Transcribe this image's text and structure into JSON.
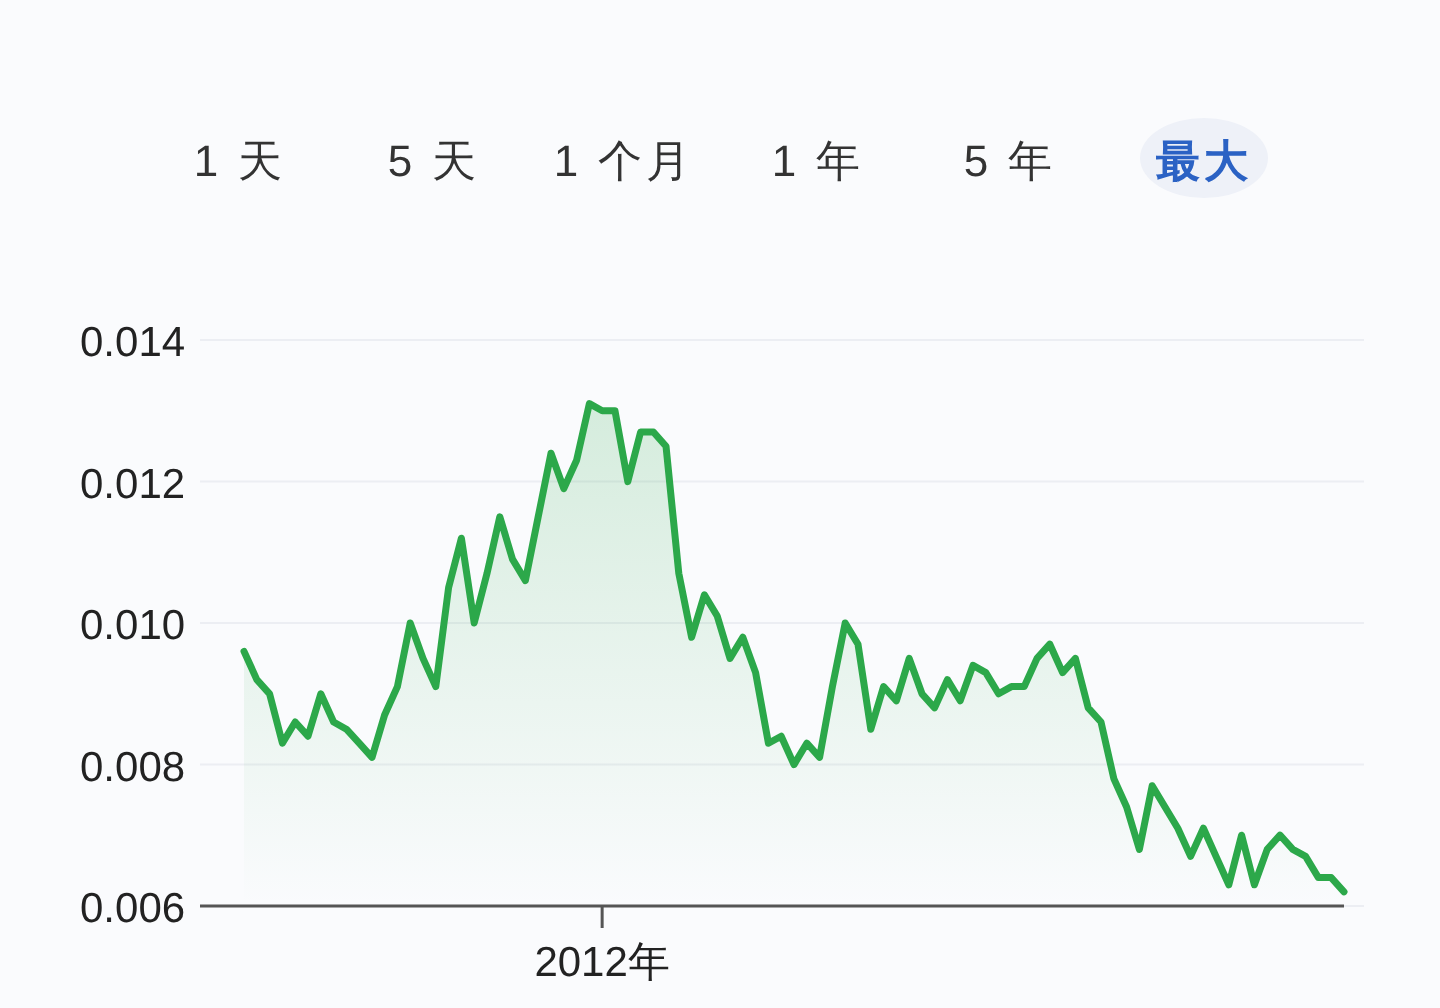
{
  "chart_data": {
    "type": "area",
    "color": "#2ca84a",
    "annotations": [
      "1 天",
      "5 天",
      "1 个月",
      "1 年",
      "5 年",
      "最大"
    ],
    "categories": [
      null,
      null,
      null,
      null,
      null,
      null,
      null,
      null,
      null,
      null,
      null,
      null,
      null,
      null,
      null,
      null,
      null,
      null,
      null,
      null,
      null,
      null,
      null,
      null,
      null,
      null,
      null,
      null,
      "2012年",
      null,
      null,
      null,
      null,
      null,
      null,
      null,
      null,
      null,
      null,
      null,
      null,
      null,
      null,
      null,
      null,
      null,
      null,
      null,
      null,
      null,
      null,
      null,
      null,
      null,
      null,
      null,
      null,
      null,
      null,
      null,
      null,
      null,
      null,
      null,
      null,
      null,
      null,
      null,
      null,
      null,
      null,
      null,
      null,
      null,
      null,
      null,
      null,
      null,
      null,
      null,
      null,
      null,
      null,
      null,
      null,
      null,
      null
    ],
    "values": [
      0.0096,
      0.0092,
      0.009,
      0.0083,
      0.0086,
      0.0084,
      0.009,
      0.0086,
      0.0085,
      0.0083,
      0.0081,
      0.0087,
      0.0091,
      0.01,
      0.0095,
      0.0091,
      0.0105,
      0.0112,
      0.01,
      0.0107,
      0.0115,
      0.0109,
      0.0106,
      0.0115,
      0.0124,
      0.0119,
      0.0123,
      0.0131,
      0.013,
      0.013,
      0.012,
      0.0127,
      0.0127,
      0.0125,
      0.0107,
      0.0098,
      0.0104,
      0.0101,
      0.0095,
      0.0098,
      0.0093,
      0.0083,
      0.0084,
      0.008,
      0.0083,
      0.0081,
      0.0091,
      0.01,
      0.0097,
      0.0085,
      0.0091,
      0.0089,
      0.0095,
      0.009,
      0.0088,
      0.0092,
      0.0089,
      0.0094,
      0.0093,
      0.009,
      0.0091,
      0.0091,
      0.0095,
      0.0097,
      0.0093,
      0.0095,
      0.0088,
      0.0086,
      0.0078,
      0.0074,
      0.0068,
      0.0077,
      0.0074,
      0.0071,
      0.0067,
      0.0071,
      0.0067,
      0.0063,
      0.007,
      0.0063,
      0.0068,
      0.007,
      0.0068,
      0.0067,
      0.0064,
      0.0064,
      0.0062
    ],
    "ylim": [
      0.006,
      0.014
    ],
    "yticks": [
      0.006,
      0.008,
      {
        "value": 0.01,
        "label": "0.010"
      },
      0.012,
      0.014
    ],
    "grid": "y"
  }
}
